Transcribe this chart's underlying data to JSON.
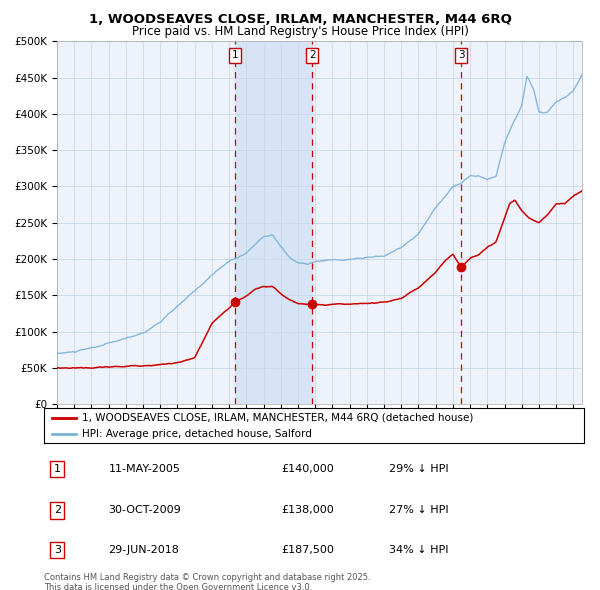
{
  "title": "1, WOODSEAVES CLOSE, IRLAM, MANCHESTER, M44 6RQ",
  "subtitle": "Price paid vs. HM Land Registry's House Price Index (HPI)",
  "legend_property": "1, WOODSEAVES CLOSE, IRLAM, MANCHESTER, M44 6RQ (detached house)",
  "legend_hpi": "HPI: Average price, detached house, Salford",
  "transactions": [
    {
      "num": 1,
      "date": "11-MAY-2005",
      "price": 140000,
      "hpi_pct": "29% ↓ HPI",
      "year_x": 2005.36
    },
    {
      "num": 2,
      "date": "30-OCT-2009",
      "price": 138000,
      "hpi_pct": "27% ↓ HPI",
      "year_x": 2009.83
    },
    {
      "num": 3,
      "date": "29-JUN-2018",
      "price": 187500,
      "hpi_pct": "34% ↓ HPI",
      "year_x": 2018.49
    }
  ],
  "footnote1": "Contains HM Land Registry data © Crown copyright and database right 2025.",
  "footnote2": "This data is licensed under the Open Government Licence v3.0.",
  "ylim": [
    0,
    500000
  ],
  "yticks": [
    0,
    50000,
    100000,
    150000,
    200000,
    250000,
    300000,
    350000,
    400000,
    450000,
    500000
  ],
  "xlim_start": 1995.0,
  "xlim_end": 2025.5,
  "plot_bg": "#eef3fb",
  "red_color": "#cc0000",
  "blue_color": "#7ab3d9",
  "shade_color": "#d6e4f5",
  "shade_between_x1": 2005.36,
  "shade_between_x2": 2009.83
}
